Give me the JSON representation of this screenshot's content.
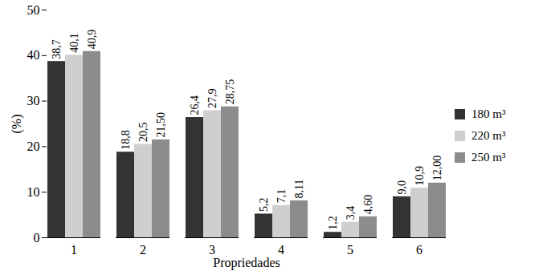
{
  "chart_data": {
    "type": "bar",
    "x_label": "Propriedades",
    "y_label": "(%)",
    "categories": [
      "1",
      "2",
      "3",
      "4",
      "5",
      "6"
    ],
    "series": [
      {
        "name": "180 m³",
        "color": "#333333",
        "values": [
          38.7,
          18.8,
          26.4,
          5.2,
          1.2,
          9.0
        ],
        "value_labels": [
          "38,7",
          "18,8",
          "26,4",
          "5,2",
          "1,2",
          "9,0"
        ]
      },
      {
        "name": "220 m³",
        "color": "#cfcfcf",
        "values": [
          40.1,
          20.5,
          27.9,
          7.1,
          3.4,
          10.9
        ],
        "value_labels": [
          "40,1",
          "20,5",
          "27,9",
          "7,1",
          "3,4",
          "10,9"
        ]
      },
      {
        "name": "250 m³",
        "color": "#8c8c8c",
        "values": [
          40.9,
          21.5,
          28.75,
          8.11,
          4.6,
          12.0
        ],
        "value_labels": [
          "40,9",
          "21,50",
          "28,75",
          "8,11",
          "4,60",
          "12,00"
        ]
      }
    ],
    "ylim": [
      0,
      50
    ],
    "yticks": [
      0,
      10,
      20,
      30,
      40,
      50
    ],
    "grid": false,
    "legend": "right",
    "data_labels": true
  }
}
